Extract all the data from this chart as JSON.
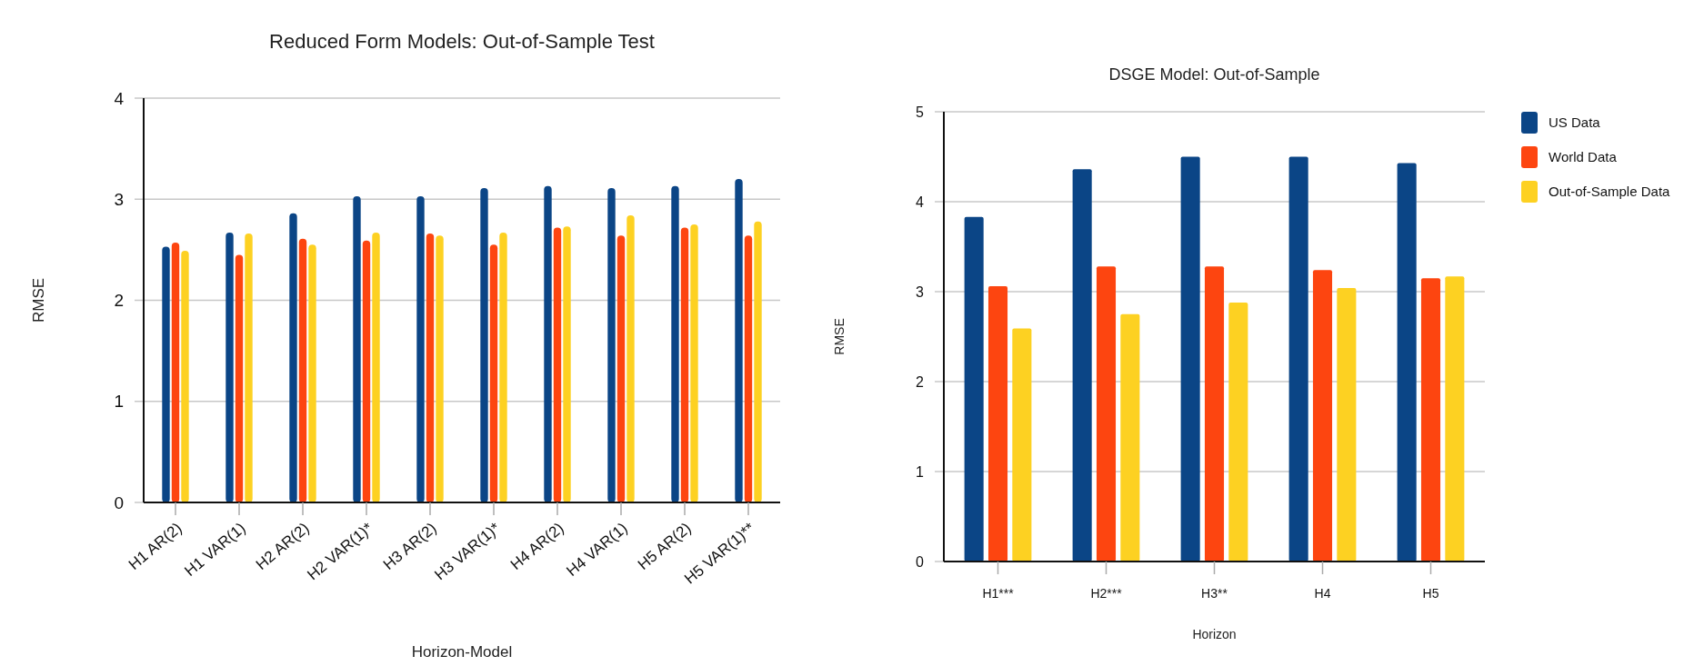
{
  "chart_data": [
    {
      "type": "bar",
      "title": "Reduced Form Models: Out-of-Sample Test",
      "xlabel": "Horizon-Model",
      "ylabel": "RMSE",
      "categories": [
        "H1 AR(2)",
        "H1 VAR(1)",
        "H2 AR(2)",
        "H2 VAR(1)*",
        "H3 AR(2)",
        "H3 VAR(1)*",
        "H4 AR(2)",
        "H4 VAR(1)",
        "H5 AR(2)",
        "H5 VAR(1)**"
      ],
      "series": [
        {
          "color": "#0b4586",
          "values": [
            2.53,
            2.67,
            2.86,
            3.03,
            3.03,
            3.11,
            3.13,
            3.11,
            3.13,
            3.2
          ]
        },
        {
          "color": "#fd4510",
          "values": [
            2.57,
            2.45,
            2.61,
            2.59,
            2.66,
            2.55,
            2.72,
            2.64,
            2.72,
            2.64
          ]
        },
        {
          "color": "#fdd122",
          "values": [
            2.49,
            2.66,
            2.55,
            2.67,
            2.64,
            2.67,
            2.73,
            2.84,
            2.75,
            2.78
          ]
        }
      ],
      "ylim": [
        0,
        4
      ],
      "yticks": [
        0,
        1,
        2,
        3,
        4
      ],
      "grid": "y",
      "legend": false
    },
    {
      "type": "bar",
      "title": "DSGE Model: Out-of-Sample",
      "xlabel": "Horizon",
      "ylabel": "RMSE",
      "categories": [
        "H1***",
        "H2***",
        "H3**",
        "H4",
        "H5"
      ],
      "series": [
        {
          "name": "US Data",
          "color": "#0b4586",
          "values": [
            3.83,
            4.36,
            4.5,
            4.5,
            4.43
          ]
        },
        {
          "name": "World Data",
          "color": "#fd4510",
          "values": [
            3.06,
            3.28,
            3.28,
            3.24,
            3.15
          ]
        },
        {
          "name": "Out-of-Sample Data",
          "color": "#fdd122",
          "values": [
            2.59,
            2.75,
            2.88,
            3.04,
            3.17
          ]
        }
      ],
      "ylim": [
        0,
        5
      ],
      "yticks": [
        0,
        1,
        2,
        3,
        4,
        5
      ],
      "grid": "y",
      "legend": "top right"
    }
  ]
}
